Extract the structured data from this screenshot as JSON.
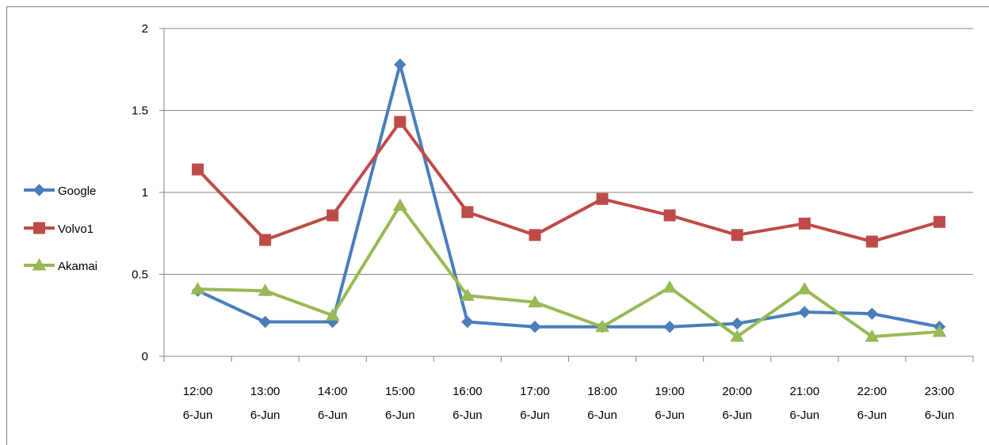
{
  "chart_data": {
    "type": "line",
    "categories": [
      [
        "12:00",
        "6-Jun"
      ],
      [
        "13:00",
        "6-Jun"
      ],
      [
        "14:00",
        "6-Jun"
      ],
      [
        "15:00",
        "6-Jun"
      ],
      [
        "16:00",
        "6-Jun"
      ],
      [
        "17:00",
        "6-Jun"
      ],
      [
        "18:00",
        "6-Jun"
      ],
      [
        "19:00",
        "6-Jun"
      ],
      [
        "20:00",
        "6-Jun"
      ],
      [
        "21:00",
        "6-Jun"
      ],
      [
        "22:00",
        "6-Jun"
      ],
      [
        "23:00",
        "6-Jun"
      ]
    ],
    "series": [
      {
        "name": "Google",
        "color": "#4a7ebb",
        "marker": "diamond",
        "values": [
          0.4,
          0.21,
          0.21,
          1.78,
          0.21,
          0.18,
          0.18,
          0.18,
          0.2,
          0.27,
          0.26,
          0.18
        ]
      },
      {
        "name": "Volvo1",
        "color": "#be4b48",
        "marker": "square",
        "values": [
          1.14,
          0.71,
          0.86,
          1.43,
          0.88,
          0.74,
          0.96,
          0.86,
          0.74,
          0.81,
          0.7,
          0.82
        ]
      },
      {
        "name": "Akamai",
        "color": "#98b954",
        "marker": "triangle",
        "values": [
          0.41,
          0.4,
          0.25,
          0.92,
          0.37,
          0.33,
          0.18,
          0.42,
          0.12,
          0.41,
          0.12,
          0.15
        ]
      }
    ],
    "y_ticks": [
      "0",
      "0.5",
      "1",
      "1.5",
      "2"
    ],
    "ylim": [
      0,
      2
    ],
    "grid": "horizontal",
    "legend_position": "left",
    "title": "",
    "xlabel": "",
    "ylabel": ""
  }
}
